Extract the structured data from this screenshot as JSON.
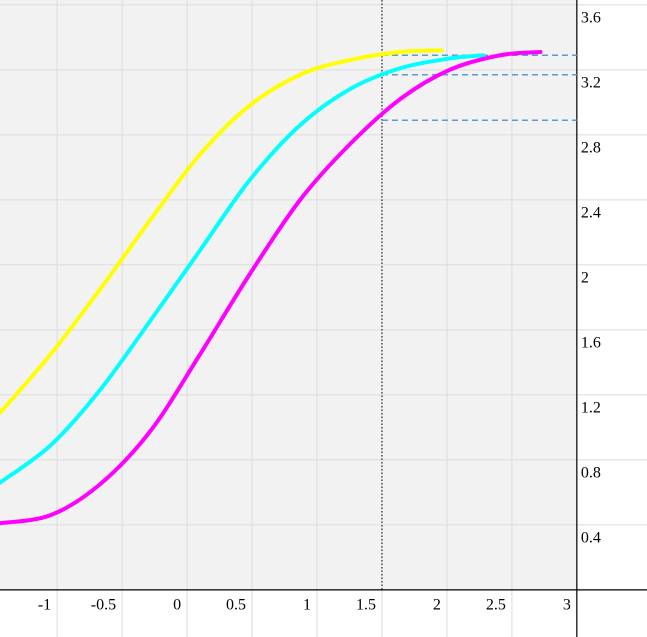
{
  "chart_data": {
    "type": "line",
    "x": [
      -1.44,
      -1.05,
      -0.67,
      -0.28,
      0.1,
      0.48,
      0.87,
      1.25,
      1.64,
      1.96,
      2.02,
      2.28,
      2.41,
      2.72
    ],
    "series": [
      {
        "color": "#ffff00",
        "values": [
          1.09,
          1.45,
          1.85,
          2.28,
          2.68,
          2.98,
          3.17,
          3.26,
          3.31,
          3.32,
          null,
          null,
          null,
          null
        ]
      },
      {
        "color": "#00ffff",
        "values": [
          0.66,
          0.89,
          1.23,
          1.66,
          2.09,
          2.52,
          2.86,
          3.08,
          3.21,
          null,
          3.27,
          3.29,
          null,
          null
        ]
      },
      {
        "color": "#ff00ff",
        "values": [
          0.41,
          0.46,
          0.65,
          0.98,
          1.45,
          1.94,
          2.4,
          2.74,
          3.02,
          null,
          3.2,
          null,
          3.29,
          3.31
        ]
      }
    ],
    "vline": 1.5,
    "hlines": [
      3.29,
      3.17,
      2.89
    ],
    "hline_color": "#5b9bd5",
    "xlim": [
      -1.44,
      3.54
    ],
    "ylim": [
      -0.29,
      3.63
    ],
    "xticks": [
      -1,
      -0.5,
      0,
      0.5,
      1,
      1.5,
      2,
      2.5,
      3
    ],
    "yticks": [
      0.4,
      0.8,
      1.2,
      1.6,
      2,
      2.4,
      2.8,
      3.2,
      3.6
    ],
    "yaxis_position": 3,
    "grid": true
  }
}
